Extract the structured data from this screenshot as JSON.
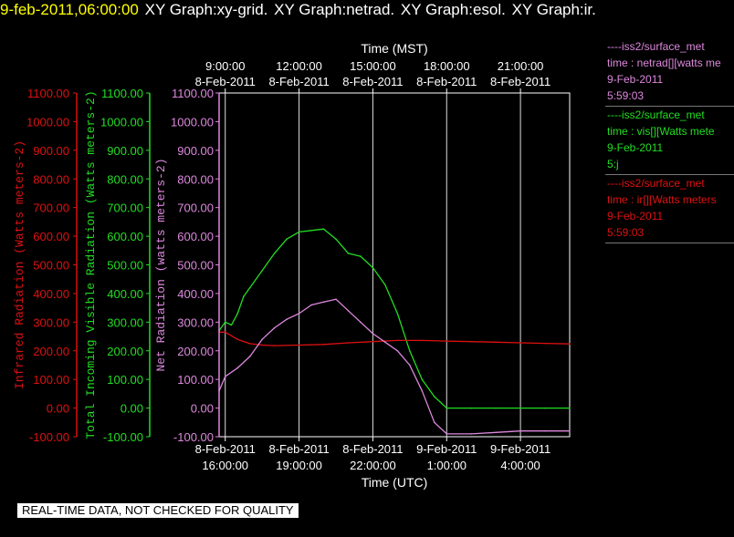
{
  "header": {
    "timestamp": "9-feb-2011,06:00:00",
    "graphs": [
      "XY Graph:xy-grid.",
      "XY Graph:netrad.",
      "XY Graph:esol.",
      "XY Graph:ir."
    ]
  },
  "legend": [
    {
      "source": "----iss2/surface_met",
      "variable": "time : netrad[][watts me",
      "date": "9-Feb-2011",
      "time": "5:59:03",
      "color": "#dd88dd"
    },
    {
      "source": "----iss2/surface_met",
      "variable": "time : vis[][Watts mete",
      "date": "9-Feb-2011",
      "time": "5:j",
      "color": "#22dd22"
    },
    {
      "source": "----iss2/surface_met",
      "variable": "time : ir[][Watts meters",
      "date": "9-Feb-2011",
      "time": "5:59:03",
      "color": "#dd1111"
    }
  ],
  "disclaimer": "REAL-TIME DATA, NOT CHECKED FOR QUALITY",
  "colors": {
    "background": "#000000",
    "axes": "#ffffff",
    "netrad": "#dd88dd",
    "vis": "#22dd22",
    "ir": "#dd1111",
    "title_time": "#ffff00"
  },
  "chart_data": {
    "type": "line",
    "top_axis": {
      "label": "Time (MST)",
      "ticks": [
        {
          "time": "9:00:00",
          "date": "8-Feb-2011"
        },
        {
          "time": "12:00:00",
          "date": "8-Feb-2011"
        },
        {
          "time": "15:00:00",
          "date": "8-Feb-2011"
        },
        {
          "time": "18:00:00",
          "date": "8-Feb-2011"
        },
        {
          "time": "21:00:00",
          "date": "8-Feb-2011"
        }
      ]
    },
    "bottom_axis": {
      "label": "Time (UTC)",
      "ticks": [
        {
          "date": "8-Feb-2011",
          "time": "16:00:00"
        },
        {
          "date": "8-Feb-2011",
          "time": "19:00:00"
        },
        {
          "date": "8-Feb-2011",
          "time": "22:00:00"
        },
        {
          "date": "9-Feb-2011",
          "time": "1:00:00"
        },
        {
          "date": "9-Feb-2011",
          "time": "4:00:00"
        }
      ]
    },
    "x_range_utc": [
      "2011-02-08T15:45",
      "2011-02-09T06:00"
    ],
    "y_axes": [
      {
        "id": "ir",
        "label": "Infrared Radiation (Watts meters-2)",
        "ylim": [
          -100,
          1100
        ],
        "color": "#dd1111"
      },
      {
        "id": "vis",
        "label": "Total Incoming Visible Radiation (Watts meters-2)",
        "ylim": [
          -100,
          1100
        ],
        "color": "#22dd22"
      },
      {
        "id": "netrad",
        "label": "Net Radiation (watts meters-2)",
        "ylim": [
          -100,
          1100
        ],
        "color": "#dd88dd"
      }
    ],
    "y_ticks": [
      "1100.00",
      "1000.00",
      "900.00",
      "800.00",
      "700.00",
      "600.00",
      "500.00",
      "400.00",
      "300.00",
      "200.00",
      "100.00",
      "0.00",
      "-100.00"
    ],
    "grid": "vertical lines at UTC ticks",
    "series": [
      {
        "id": "vis",
        "x": [
          "2011-02-08T15:45",
          "2011-02-08T16:00",
          "2011-02-08T16:15",
          "2011-02-08T16:30",
          "2011-02-08T16:45",
          "2011-02-08T17:00",
          "2011-02-08T17:30",
          "2011-02-08T18:00",
          "2011-02-08T18:30",
          "2011-02-08T19:00",
          "2011-02-08T19:30",
          "2011-02-08T20:00",
          "2011-02-08T20:30",
          "2011-02-08T21:00",
          "2011-02-08T21:30",
          "2011-02-08T22:00",
          "2011-02-08T22:30",
          "2011-02-08T23:00",
          "2011-02-08T23:30",
          "2011-02-09T00:00",
          "2011-02-09T00:30",
          "2011-02-09T01:00",
          "2011-02-09T02:00",
          "2011-02-09T03:00",
          "2011-02-09T04:00",
          "2011-02-09T05:00",
          "2011-02-09T06:00"
        ],
        "values": [
          270,
          300,
          290,
          330,
          390,
          420,
          480,
          540,
          590,
          615,
          620,
          625,
          590,
          540,
          530,
          490,
          430,
          330,
          200,
          100,
          40,
          0,
          0,
          0,
          0,
          0,
          0
        ]
      },
      {
        "id": "ir",
        "x": [
          "2011-02-08T15:45",
          "2011-02-08T16:00",
          "2011-02-08T16:30",
          "2011-02-08T17:00",
          "2011-02-08T17:30",
          "2011-02-08T18:00",
          "2011-02-08T19:00",
          "2011-02-08T20:00",
          "2011-02-08T21:00",
          "2011-02-08T22:00",
          "2011-02-08T23:00",
          "2011-02-09T00:00",
          "2011-02-09T01:00",
          "2011-02-09T02:00",
          "2011-02-09T03:00",
          "2011-02-09T04:00",
          "2011-02-09T05:00",
          "2011-02-09T06:00"
        ],
        "values": [
          265,
          265,
          240,
          225,
          220,
          218,
          220,
          222,
          228,
          232,
          236,
          236,
          234,
          232,
          230,
          228,
          226,
          224
        ]
      },
      {
        "id": "netrad",
        "x": [
          "2011-02-08T15:45",
          "2011-02-08T16:00",
          "2011-02-08T16:30",
          "2011-02-08T17:00",
          "2011-02-08T17:30",
          "2011-02-08T18:00",
          "2011-02-08T18:30",
          "2011-02-08T19:00",
          "2011-02-08T19:30",
          "2011-02-08T20:00",
          "2011-02-08T20:30",
          "2011-02-08T21:00",
          "2011-02-08T21:30",
          "2011-02-08T22:00",
          "2011-02-08T22:30",
          "2011-02-08T23:00",
          "2011-02-08T23:30",
          "2011-02-09T00:00",
          "2011-02-09T00:30",
          "2011-02-09T01:00",
          "2011-02-09T02:00",
          "2011-02-09T03:00",
          "2011-02-09T04:00",
          "2011-02-09T05:00",
          "2011-02-09T06:00"
        ],
        "values": [
          60,
          110,
          140,
          180,
          240,
          280,
          310,
          330,
          360,
          370,
          380,
          340,
          300,
          260,
          230,
          200,
          150,
          60,
          -50,
          -90,
          -90,
          -85,
          -80,
          -80,
          -80
        ]
      }
    ]
  }
}
